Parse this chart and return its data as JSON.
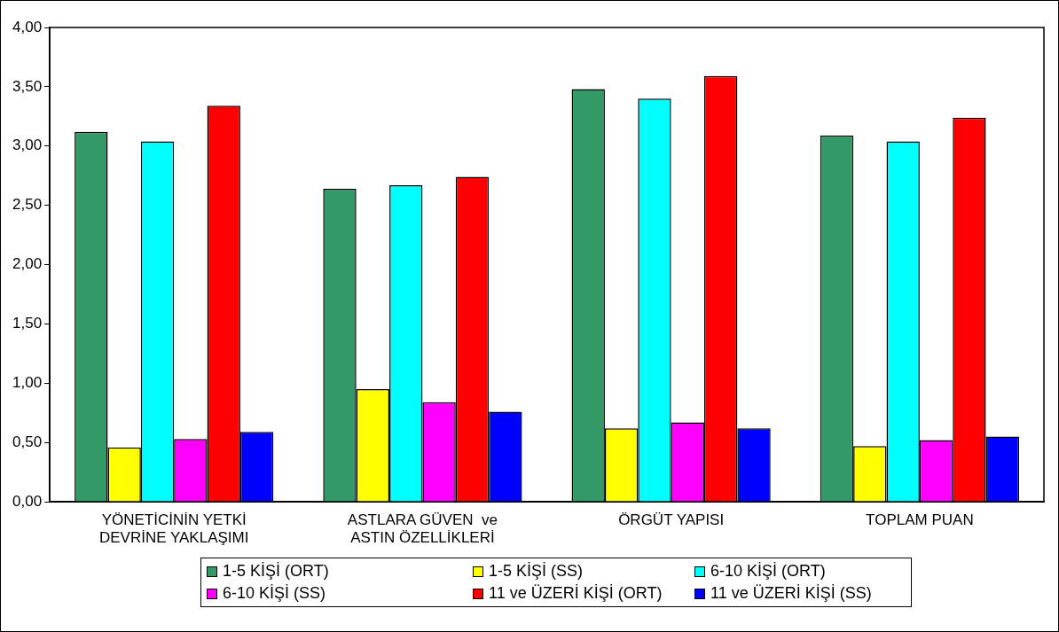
{
  "chart_data": {
    "type": "bar",
    "categories": [
      "YÖNETİCİNİN YETKİ\nDEVRİNE YAKLAŞIMI",
      "ASTLARA GÜVEN  ve\nASTIN ÖZELLİKLERİ",
      "ÖRGÜT YAPISI",
      "TOPLAM PUAN"
    ],
    "series": [
      {
        "name": "1-5 KİŞİ (ORT)",
        "color": "#339966",
        "values": [
          3.12,
          2.64,
          3.48,
          3.09
        ]
      },
      {
        "name": "1-5 KİŞİ (SS)",
        "color": "#ffff00",
        "values": [
          0.46,
          0.95,
          0.62,
          0.47
        ]
      },
      {
        "name": "6-10 KİŞİ (ORT)",
        "color": "#00ffff",
        "values": [
          3.04,
          2.67,
          3.4,
          3.04
        ]
      },
      {
        "name": "6-10 KİŞİ (SS)",
        "color": "#ff00ff",
        "values": [
          0.53,
          0.84,
          0.67,
          0.52
        ]
      },
      {
        "name": "11 ve ÜZERİ KİŞİ (ORT)",
        "color": "#ff0000",
        "values": [
          3.34,
          2.74,
          3.59,
          3.24
        ]
      },
      {
        "name": "11 ve ÜZERİ KİŞİ (SS)",
        "color": "#0000ff",
        "values": [
          0.59,
          0.76,
          0.62,
          0.55
        ]
      }
    ],
    "ylim": [
      0,
      4
    ],
    "yticks": [
      {
        "value": 0,
        "label": "0,00"
      },
      {
        "value": 0.5,
        "label": "0,50"
      },
      {
        "value": 1,
        "label": "1,00"
      },
      {
        "value": 1.5,
        "label": "1,50"
      },
      {
        "value": 2,
        "label": "2,00"
      },
      {
        "value": 2.5,
        "label": "2,50"
      },
      {
        "value": 3,
        "label": "3,00"
      },
      {
        "value": 3.5,
        "label": "3,50"
      },
      {
        "value": 4,
        "label": "4,00"
      }
    ],
    "grid": false,
    "legend": "bottom"
  }
}
